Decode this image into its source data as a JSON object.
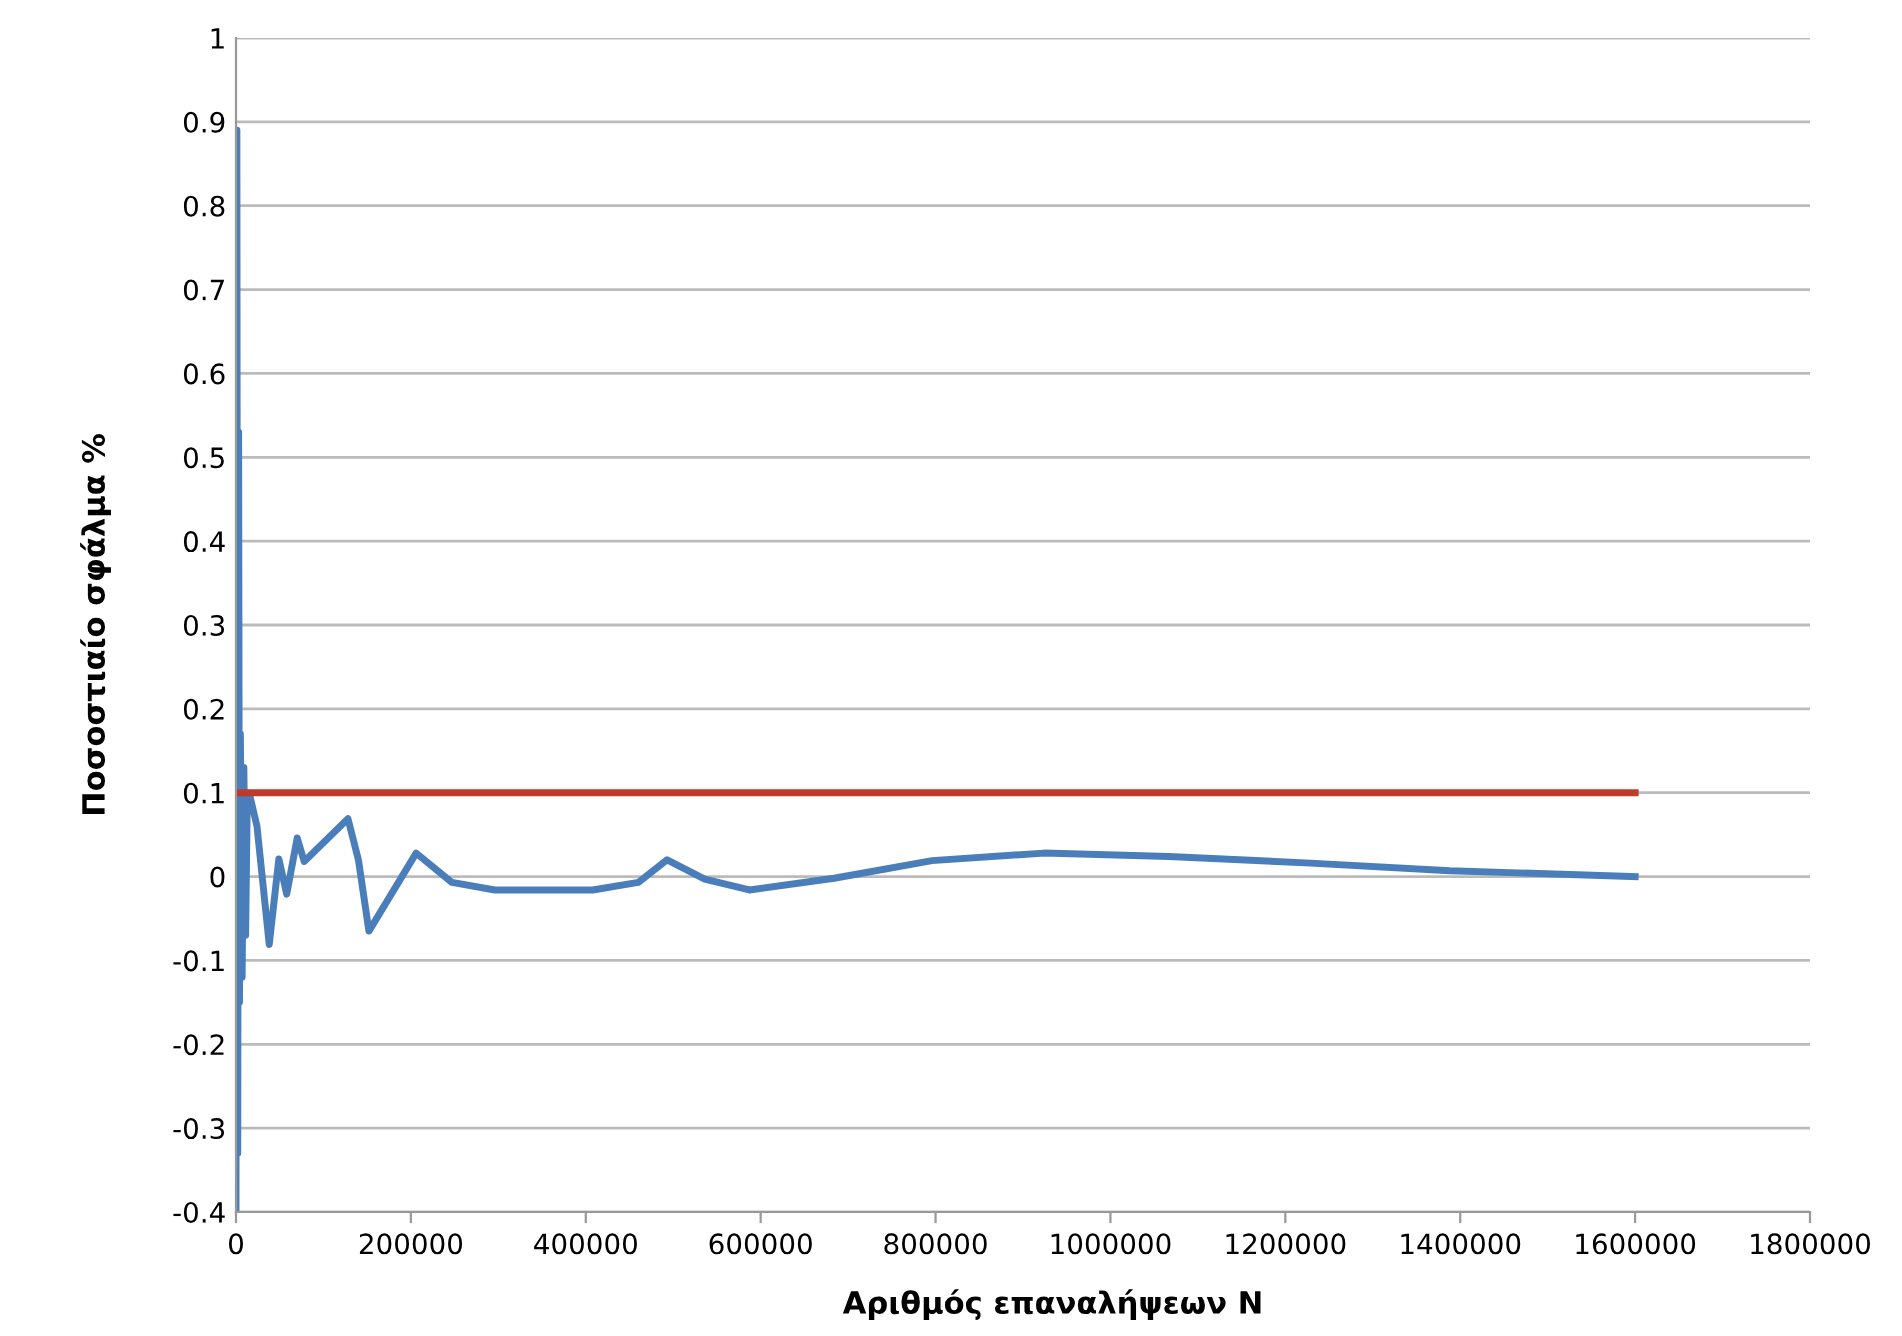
{
  "chart_data": {
    "type": "line",
    "xlabel": "Αριθμός επαναλήψεων N",
    "ylabel": "Ποσοστιαίο σφάλμα %",
    "xlim": [
      0,
      1800000
    ],
    "xticks": [
      0,
      200000,
      400000,
      600000,
      800000,
      1000000,
      1200000,
      1400000,
      1600000,
      1800000
    ],
    "ylim": [
      -0.4,
      1
    ],
    "yticks": [
      -0.4,
      -0.3,
      -0.2,
      -0.1,
      0,
      0.1,
      0.2,
      0.3,
      0.4,
      0.5,
      0.6,
      0.7,
      0.8,
      0.9,
      1
    ],
    "grid": "y",
    "legend": false,
    "marker": "none",
    "line_style": "solid",
    "series": [
      {
        "color": "#4a7ebb",
        "x": [
          0,
          1000,
          2000,
          3000,
          4000,
          5000,
          7000,
          9000,
          11000,
          13000,
          15700,
          24000,
          38000,
          49000,
          58000,
          70000,
          78000,
          128000,
          140000,
          152000,
          206000,
          247000,
          296000,
          408000,
          460000,
          493000,
          536000,
          587000,
          684000,
          796000,
          924000,
          1067000,
          1229000,
          1388000,
          1600000
        ],
        "values": [
          -0.4,
          0.89,
          -0.33,
          0.53,
          -0.15,
          0.17,
          -0.12,
          0.13,
          -0.07,
          0.1,
          0.097,
          0.06,
          -0.081,
          0.021,
          -0.021,
          0.046,
          0.018,
          0.069,
          0.02,
          -0.065,
          0.028,
          -0.007,
          -0.016,
          -0.016,
          -0.007,
          0.02,
          -0.003,
          -0.016,
          -0.002,
          0.019,
          0.028,
          0.024,
          0.016,
          0.007,
          0.0
        ]
      },
      {
        "color": "#c0392b",
        "x": [
          0,
          1600000
        ],
        "values": [
          0.1,
          0.1
        ]
      }
    ]
  }
}
